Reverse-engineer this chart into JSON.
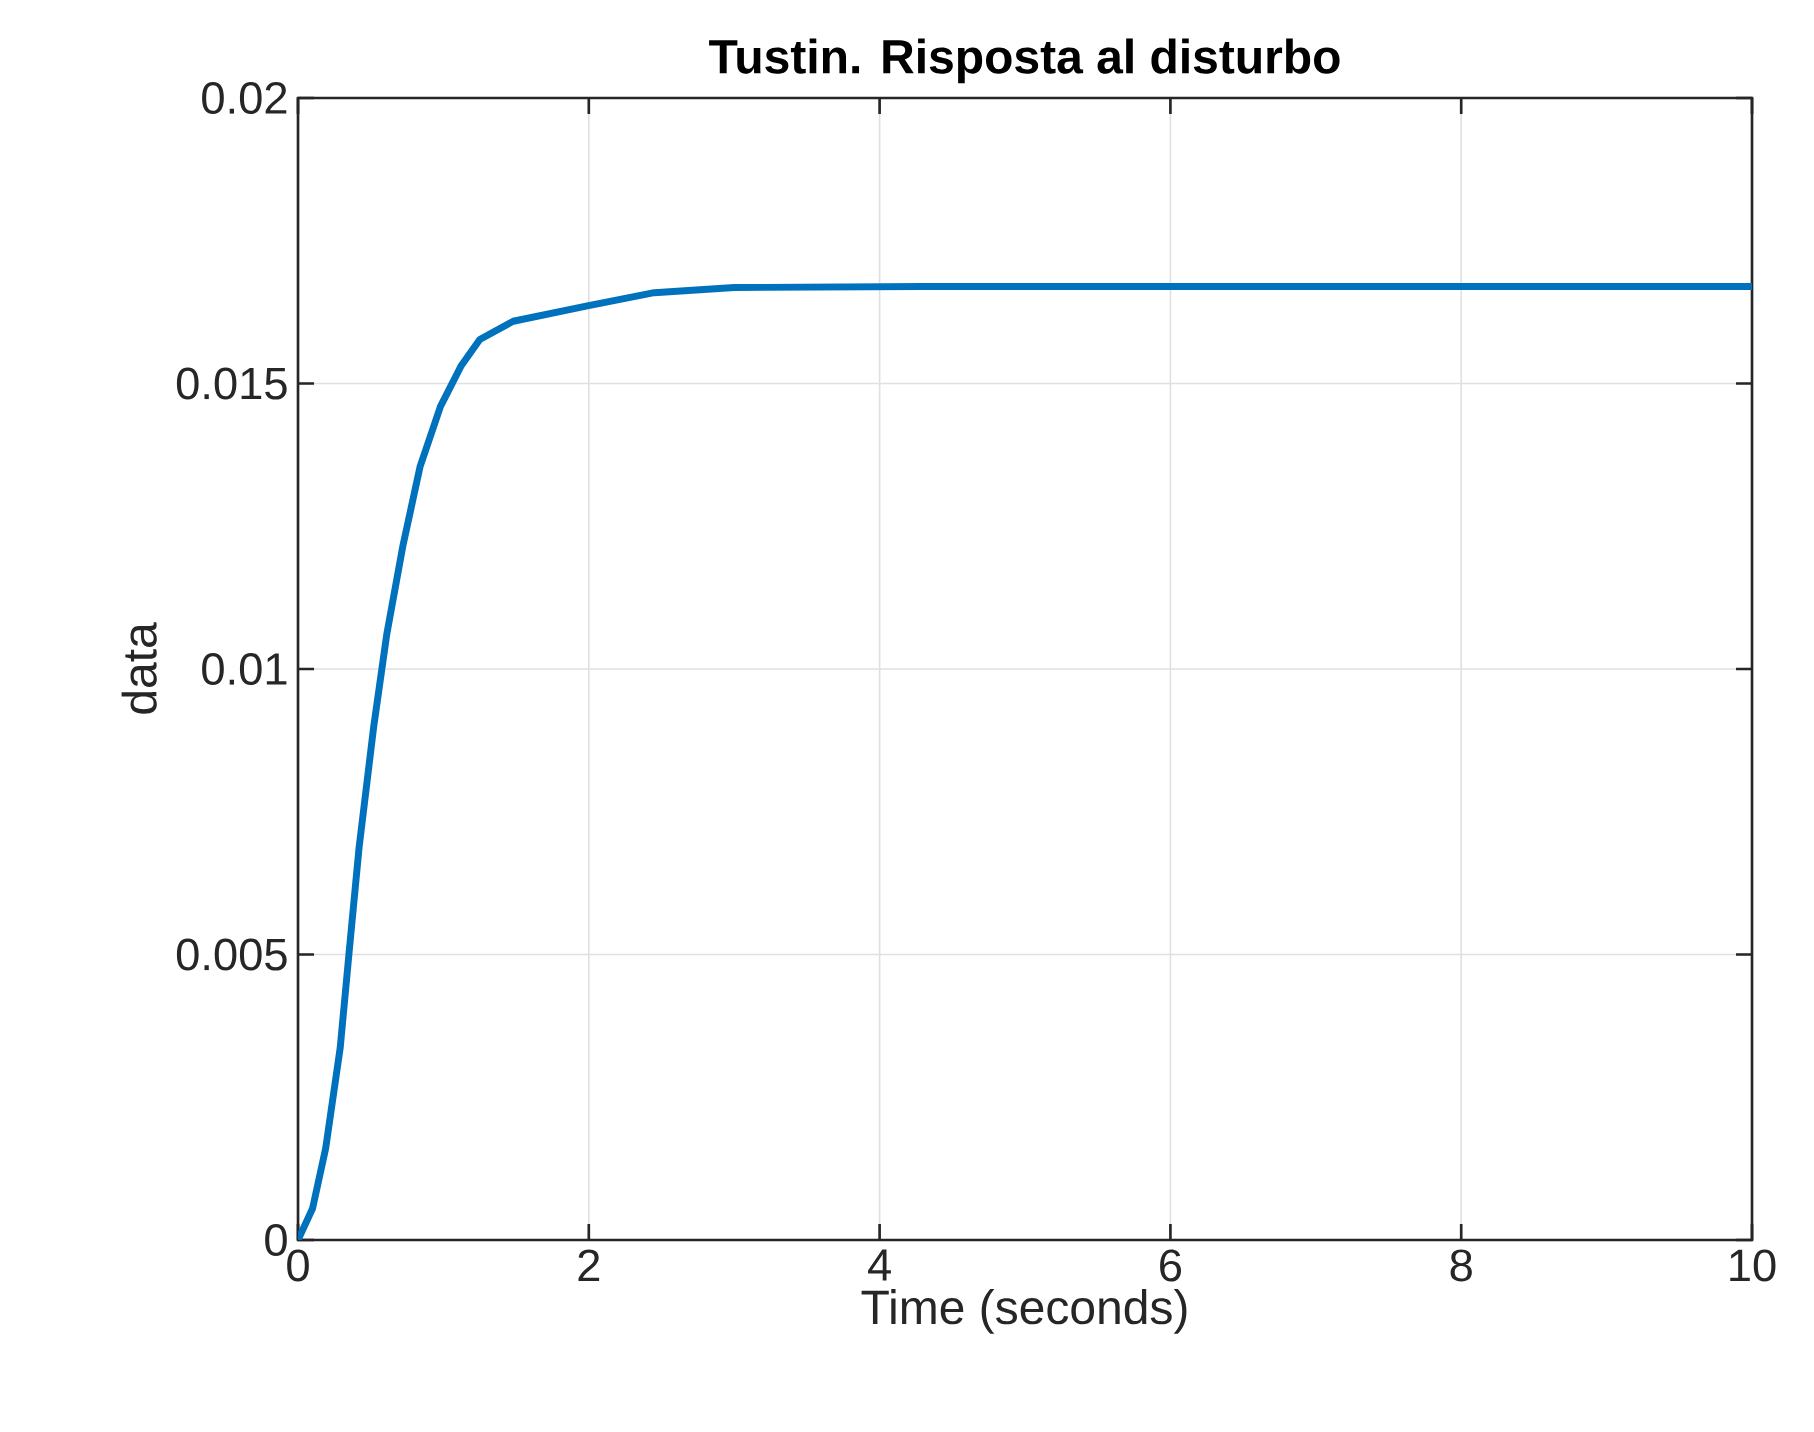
{
  "chart_data": {
    "type": "line",
    "title": "Tustin. Risposta al disturbo",
    "xlabel": "Time (seconds)",
    "ylabel": "data",
    "x": [
      0,
      0.1,
      0.19,
      0.29,
      0.35,
      0.42,
      0.52,
      0.61,
      0.72,
      0.84,
      0.98,
      1.12,
      1.25,
      1.48,
      1.99,
      2.45,
      3.0,
      4.3,
      6,
      8,
      10
    ],
    "series": [
      {
        "color": "#0072bd",
        "values": [
          0,
          0.00055,
          0.0016,
          0.00336,
          0.005,
          0.00687,
          0.00898,
          0.0106,
          0.01214,
          0.01355,
          0.0146,
          0.0153,
          0.01577,
          0.01609,
          0.01636,
          0.01659,
          0.01668,
          0.0167,
          0.0167,
          0.0167,
          0.0167
        ]
      }
    ],
    "xlim": [
      0,
      10
    ],
    "ylim": [
      0,
      0.02
    ],
    "xticks": [
      0,
      2,
      4,
      6,
      8,
      10
    ],
    "yticks": [
      0,
      0.005,
      0.01,
      0.015,
      0.02
    ],
    "grid": true
  }
}
